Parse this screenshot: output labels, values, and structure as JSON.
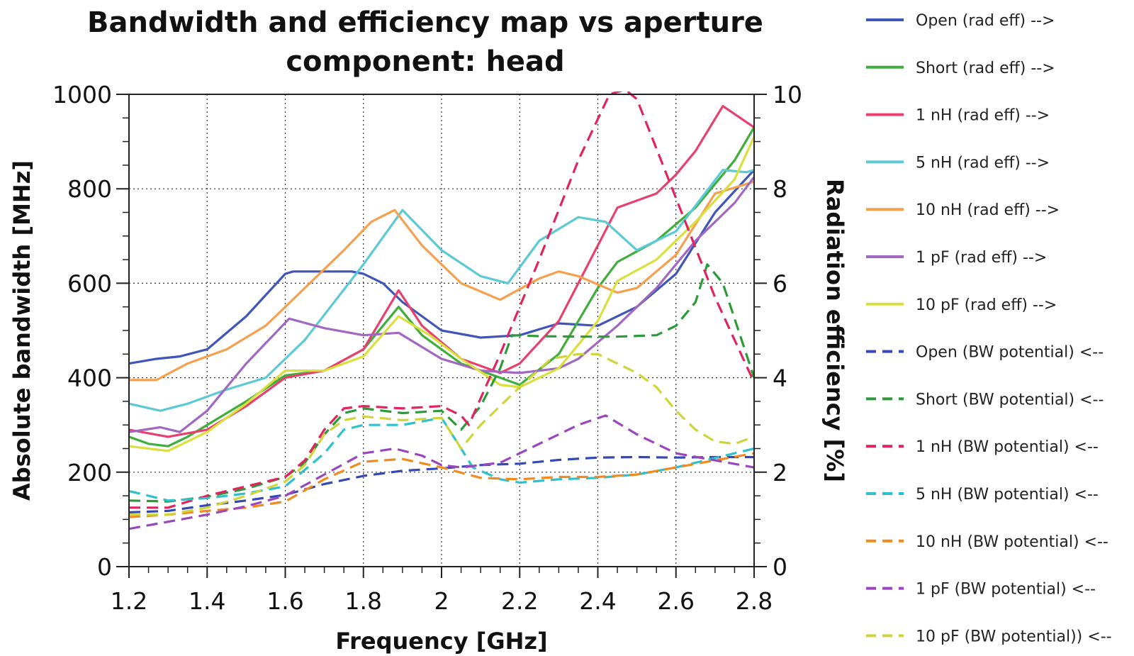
{
  "chart_data": {
    "type": "line",
    "title_line1": "Bandwidth and efficiency map vs aperture",
    "title_line2": "component: head",
    "xlabel": "Frequency [GHz]",
    "ylabel_left": "Absolute bandwidth [MHz]",
    "ylabel_right": "Radiation efficiency [%]",
    "xlim": [
      1.2,
      2.8
    ],
    "ylim_left": [
      0,
      1000
    ],
    "ylim_right": [
      0,
      10
    ],
    "xticks": [
      "1.2",
      "1.4",
      "1.6",
      "1.8",
      "2",
      "2.2",
      "2.4",
      "2.6",
      "2.8"
    ],
    "yticks_left": [
      "0",
      "200",
      "400",
      "600",
      "800",
      "1000"
    ],
    "yticks_right": [
      "0",
      "2",
      "4",
      "6",
      "8",
      "10"
    ],
    "grid": true,
    "legend_position": "right, outside",
    "series": [
      {
        "name": "Open (rad eff) -->",
        "color": "#4055b8",
        "dash": false,
        "x": [
          1.2,
          1.27,
          1.33,
          1.4,
          1.5,
          1.6,
          1.62,
          1.7,
          1.77,
          1.8,
          1.85,
          1.9,
          2.0,
          2.1,
          2.2,
          2.3,
          2.4,
          2.5,
          2.6,
          2.7,
          2.8
        ],
        "y": [
          4.3,
          4.4,
          4.45,
          4.6,
          5.3,
          6.2,
          6.25,
          6.25,
          6.25,
          6.2,
          6.0,
          5.6,
          5.0,
          4.85,
          4.9,
          5.15,
          5.1,
          5.5,
          6.2,
          7.5,
          8.4
        ]
      },
      {
        "name": "Short (rad eff) -->",
        "color": "#3fae3a",
        "dash": false,
        "x": [
          1.2,
          1.25,
          1.3,
          1.35,
          1.4,
          1.5,
          1.6,
          1.7,
          1.8,
          1.89,
          1.95,
          2.05,
          2.2,
          2.3,
          2.4,
          2.45,
          2.55,
          2.65,
          2.75,
          2.8
        ],
        "y": [
          2.75,
          2.6,
          2.55,
          2.75,
          3.0,
          3.5,
          4.05,
          4.15,
          4.6,
          5.5,
          4.9,
          4.3,
          3.85,
          4.5,
          5.9,
          6.45,
          6.9,
          7.6,
          8.6,
          9.3
        ]
      },
      {
        "name": "1 nH (rad eff) -->",
        "color": "#e8406e",
        "dash": false,
        "x": [
          1.2,
          1.3,
          1.4,
          1.5,
          1.6,
          1.7,
          1.8,
          1.89,
          1.95,
          2.05,
          2.15,
          2.2,
          2.3,
          2.4,
          2.45,
          2.55,
          2.6,
          2.65,
          2.72,
          2.8
        ],
        "y": [
          2.9,
          2.75,
          2.9,
          3.4,
          4.0,
          4.15,
          4.6,
          5.85,
          5.1,
          4.4,
          4.1,
          4.3,
          5.2,
          6.8,
          7.6,
          7.9,
          8.3,
          8.8,
          9.75,
          9.3
        ]
      },
      {
        "name": "5 nH (rad eff) -->",
        "color": "#5ccad5",
        "dash": false,
        "x": [
          1.2,
          1.28,
          1.35,
          1.45,
          1.55,
          1.65,
          1.8,
          1.9,
          2.0,
          2.1,
          2.17,
          2.25,
          2.35,
          2.42,
          2.5,
          2.6,
          2.72,
          2.78,
          2.8
        ],
        "y": [
          3.45,
          3.3,
          3.45,
          3.75,
          4.0,
          4.8,
          6.4,
          7.55,
          6.7,
          6.15,
          6.0,
          6.9,
          7.4,
          7.3,
          6.7,
          7.1,
          8.4,
          8.35,
          8.4
        ]
      },
      {
        "name": "10 nH (rad eff) -->",
        "color": "#f5a04f",
        "dash": false,
        "x": [
          1.2,
          1.27,
          1.35,
          1.45,
          1.55,
          1.65,
          1.75,
          1.82,
          1.88,
          1.95,
          2.05,
          2.15,
          2.25,
          2.3,
          2.35,
          2.45,
          2.5,
          2.6,
          2.7,
          2.8
        ],
        "y": [
          3.95,
          3.95,
          4.3,
          4.6,
          5.1,
          5.9,
          6.7,
          7.3,
          7.55,
          6.8,
          6.0,
          5.65,
          6.1,
          6.25,
          6.15,
          5.8,
          5.9,
          6.6,
          7.9,
          8.15
        ]
      },
      {
        "name": "1 pF (rad eff) -->",
        "color": "#a168c2",
        "dash": false,
        "x": [
          1.2,
          1.28,
          1.33,
          1.4,
          1.5,
          1.61,
          1.7,
          1.8,
          1.89,
          2.0,
          2.1,
          2.2,
          2.3,
          2.35,
          2.45,
          2.55,
          2.65,
          2.75,
          2.8
        ],
        "y": [
          2.85,
          2.95,
          2.85,
          3.3,
          4.3,
          5.25,
          5.05,
          4.9,
          4.95,
          4.4,
          4.15,
          4.1,
          4.2,
          4.4,
          5.1,
          5.9,
          6.9,
          7.7,
          8.25
        ]
      },
      {
        "name": "10 pF (rad eff) -->",
        "color": "#d9e03c",
        "dash": false,
        "x": [
          1.2,
          1.3,
          1.4,
          1.5,
          1.6,
          1.7,
          1.8,
          1.89,
          1.97,
          2.05,
          2.15,
          2.2,
          2.3,
          2.4,
          2.45,
          2.55,
          2.65,
          2.75,
          2.8
        ],
        "y": [
          2.55,
          2.45,
          2.85,
          3.45,
          4.15,
          4.15,
          4.45,
          5.3,
          4.9,
          4.4,
          3.85,
          3.8,
          4.2,
          5.2,
          6.05,
          6.5,
          7.3,
          8.2,
          9.1
        ]
      },
      {
        "name": "Open (BW potential) <--",
        "color": "#3548b5",
        "dash": true,
        "x": [
          1.2,
          1.3,
          1.4,
          1.5,
          1.6,
          1.7,
          1.8,
          1.9,
          2.0,
          2.1,
          2.2,
          2.3,
          2.4,
          2.5,
          2.6,
          2.7,
          2.8
        ],
        "y": [
          115,
          118,
          130,
          140,
          152,
          175,
          192,
          203,
          208,
          215,
          218,
          226,
          231,
          232,
          231,
          232,
          232
        ]
      },
      {
        "name": "Short (BW potential) <--",
        "color": "#2d9a3a",
        "dash": true,
        "x": [
          1.2,
          1.3,
          1.4,
          1.5,
          1.6,
          1.65,
          1.7,
          1.75,
          1.8,
          1.9,
          2.0,
          2.05,
          2.1,
          2.15,
          2.18,
          2.25,
          2.35,
          2.45,
          2.55,
          2.6,
          2.65,
          2.68,
          2.72,
          2.8
        ],
        "y": [
          140,
          138,
          148,
          165,
          190,
          220,
          280,
          325,
          335,
          325,
          330,
          290,
          340,
          420,
          490,
          488,
          487,
          487,
          490,
          510,
          560,
          640,
          600,
          400
        ]
      },
      {
        "name": "1 nH (BW potential) <--",
        "color": "#e0245e",
        "dash": true,
        "x": [
          1.2,
          1.3,
          1.4,
          1.5,
          1.6,
          1.65,
          1.7,
          1.75,
          1.8,
          1.9,
          2.0,
          2.05,
          2.07,
          2.15,
          2.25,
          2.35,
          2.43,
          2.47,
          2.5,
          2.6,
          2.7,
          2.8
        ],
        "y": [
          125,
          125,
          150,
          170,
          190,
          225,
          290,
          335,
          340,
          335,
          340,
          320,
          300,
          450,
          650,
          860,
          1000,
          1010,
          990,
          780,
          570,
          390
        ]
      },
      {
        "name": "5 nH (BW potential) <--",
        "color": "#2fc1cb",
        "dash": true,
        "x": [
          1.2,
          1.3,
          1.4,
          1.5,
          1.6,
          1.7,
          1.75,
          1.8,
          1.9,
          2.0,
          2.05,
          2.08,
          2.15,
          2.2,
          2.3,
          2.4,
          2.5,
          2.6,
          2.7,
          2.8
        ],
        "y": [
          160,
          140,
          145,
          155,
          170,
          240,
          290,
          300,
          300,
          315,
          250,
          210,
          185,
          178,
          185,
          188,
          195,
          210,
          230,
          250
        ]
      },
      {
        "name": "10 nH (BW potential) <--",
        "color": "#f28a1e",
        "dash": true,
        "x": [
          1.2,
          1.3,
          1.4,
          1.5,
          1.6,
          1.7,
          1.8,
          1.9,
          2.0,
          2.1,
          2.2,
          2.3,
          2.4,
          2.5,
          2.6,
          2.7,
          2.8
        ],
        "y": [
          105,
          110,
          118,
          125,
          138,
          185,
          222,
          228,
          210,
          188,
          185,
          190,
          190,
          195,
          210,
          225,
          240
        ]
      },
      {
        "name": "1 pF (BW potential) <--",
        "color": "#9a47bf",
        "dash": true,
        "x": [
          1.2,
          1.3,
          1.4,
          1.5,
          1.6,
          1.7,
          1.8,
          1.88,
          1.95,
          2.0,
          2.05,
          2.15,
          2.25,
          2.35,
          2.42,
          2.5,
          2.6,
          2.7,
          2.8
        ],
        "y": [
          80,
          95,
          110,
          128,
          150,
          195,
          240,
          250,
          235,
          215,
          210,
          220,
          260,
          300,
          320,
          280,
          240,
          225,
          210
        ]
      },
      {
        "name": "10 pF (BW potential)) <--",
        "color": "#cfd43a",
        "dash": true,
        "x": [
          1.2,
          1.3,
          1.4,
          1.5,
          1.6,
          1.65,
          1.7,
          1.75,
          1.8,
          1.9,
          2.0,
          2.05,
          2.1,
          2.2,
          2.28,
          2.35,
          2.4,
          2.5,
          2.55,
          2.6,
          2.65,
          2.7,
          2.75,
          2.8
        ],
        "y": [
          110,
          110,
          125,
          150,
          180,
          215,
          280,
          310,
          318,
          310,
          315,
          250,
          300,
          380,
          440,
          450,
          450,
          410,
          380,
          330,
          290,
          265,
          260,
          275
        ]
      }
    ]
  }
}
